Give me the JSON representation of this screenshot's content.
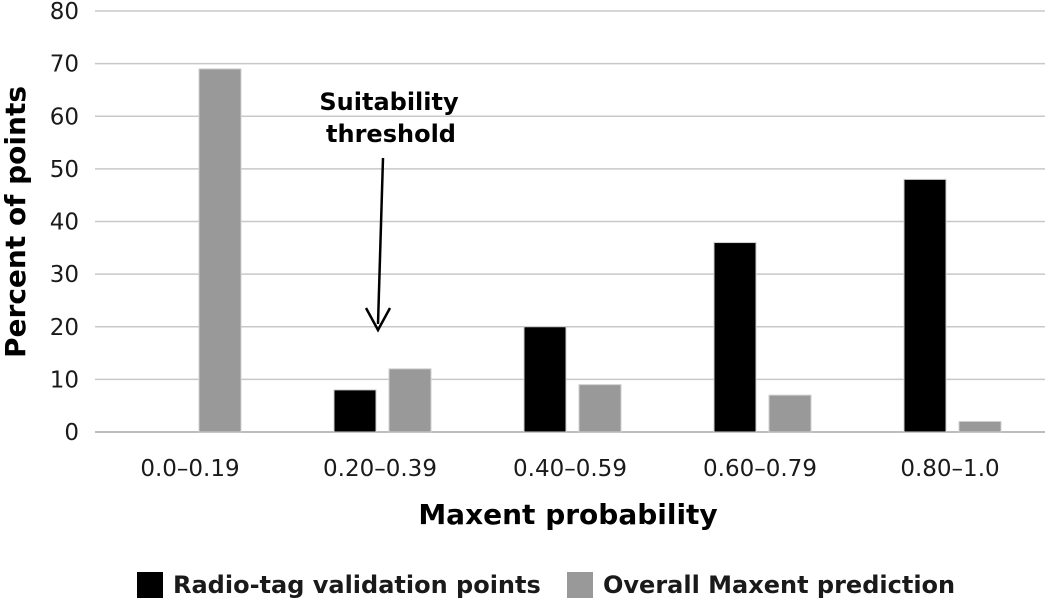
{
  "chart_data": {
    "type": "bar",
    "categories": [
      "0.0–0.19",
      "0.20–0.39",
      "0.40–0.59",
      "0.60–0.79",
      "0.80–1.0"
    ],
    "series": [
      {
        "name": "Radio-tag validation points",
        "values": [
          0,
          8,
          20,
          36,
          48
        ],
        "color": "#000000"
      },
      {
        "name": "Overall Maxent prediction",
        "values": [
          69,
          12,
          9,
          7,
          2
        ],
        "color": "#999999"
      }
    ],
    "xlabel": "Maxent probability",
    "ylabel": "Percent of points",
    "ylim": [
      0,
      80
    ],
    "yticks": [
      0,
      10,
      20,
      30,
      40,
      50,
      60,
      70,
      80
    ],
    "grid": true,
    "legend_position": "bottom",
    "annotation": {
      "lines": [
        "Suitability",
        "threshold"
      ],
      "category": "0.20–0.39"
    }
  }
}
